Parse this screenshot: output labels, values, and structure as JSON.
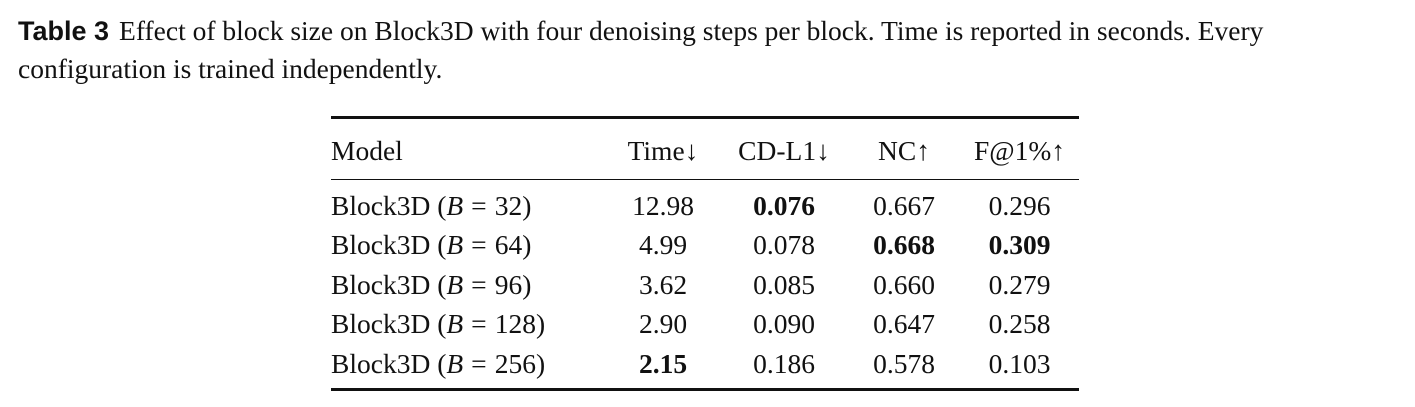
{
  "caption": {
    "label": "Table 3",
    "text": "Effect of block size on Block3D with four denoising steps per block. Time is reported in seconds. Every configuration is trained independently."
  },
  "table": {
    "headers": [
      "Model",
      "Time↓",
      "CD-L1↓",
      "NC↑",
      "F@1%↑"
    ],
    "rows": [
      {
        "model_name": "Block3D",
        "var": "B",
        "block_size": "32",
        "time": "12.98",
        "cd_l1": "0.076",
        "nc": "0.667",
        "f1": "0.296"
      },
      {
        "model_name": "Block3D",
        "var": "B",
        "block_size": "64",
        "time": "4.99",
        "cd_l1": "0.078",
        "nc": "0.668",
        "f1": "0.309"
      },
      {
        "model_name": "Block3D",
        "var": "B",
        "block_size": "96",
        "time": "3.62",
        "cd_l1": "0.085",
        "nc": "0.660",
        "f1": "0.279"
      },
      {
        "model_name": "Block3D",
        "var": "B",
        "block_size": "128",
        "time": "2.90",
        "cd_l1": "0.090",
        "nc": "0.647",
        "f1": "0.258"
      },
      {
        "model_name": "Block3D",
        "var": "B",
        "block_size": "256",
        "time": "2.15",
        "cd_l1": "0.186",
        "nc": "0.578",
        "f1": "0.103"
      }
    ],
    "bold_cells": [
      {
        "row": 0,
        "column": "cd_l1"
      },
      {
        "row": 1,
        "column": "nc"
      },
      {
        "row": 1,
        "column": "f1"
      },
      {
        "row": 4,
        "column": "time"
      }
    ]
  }
}
